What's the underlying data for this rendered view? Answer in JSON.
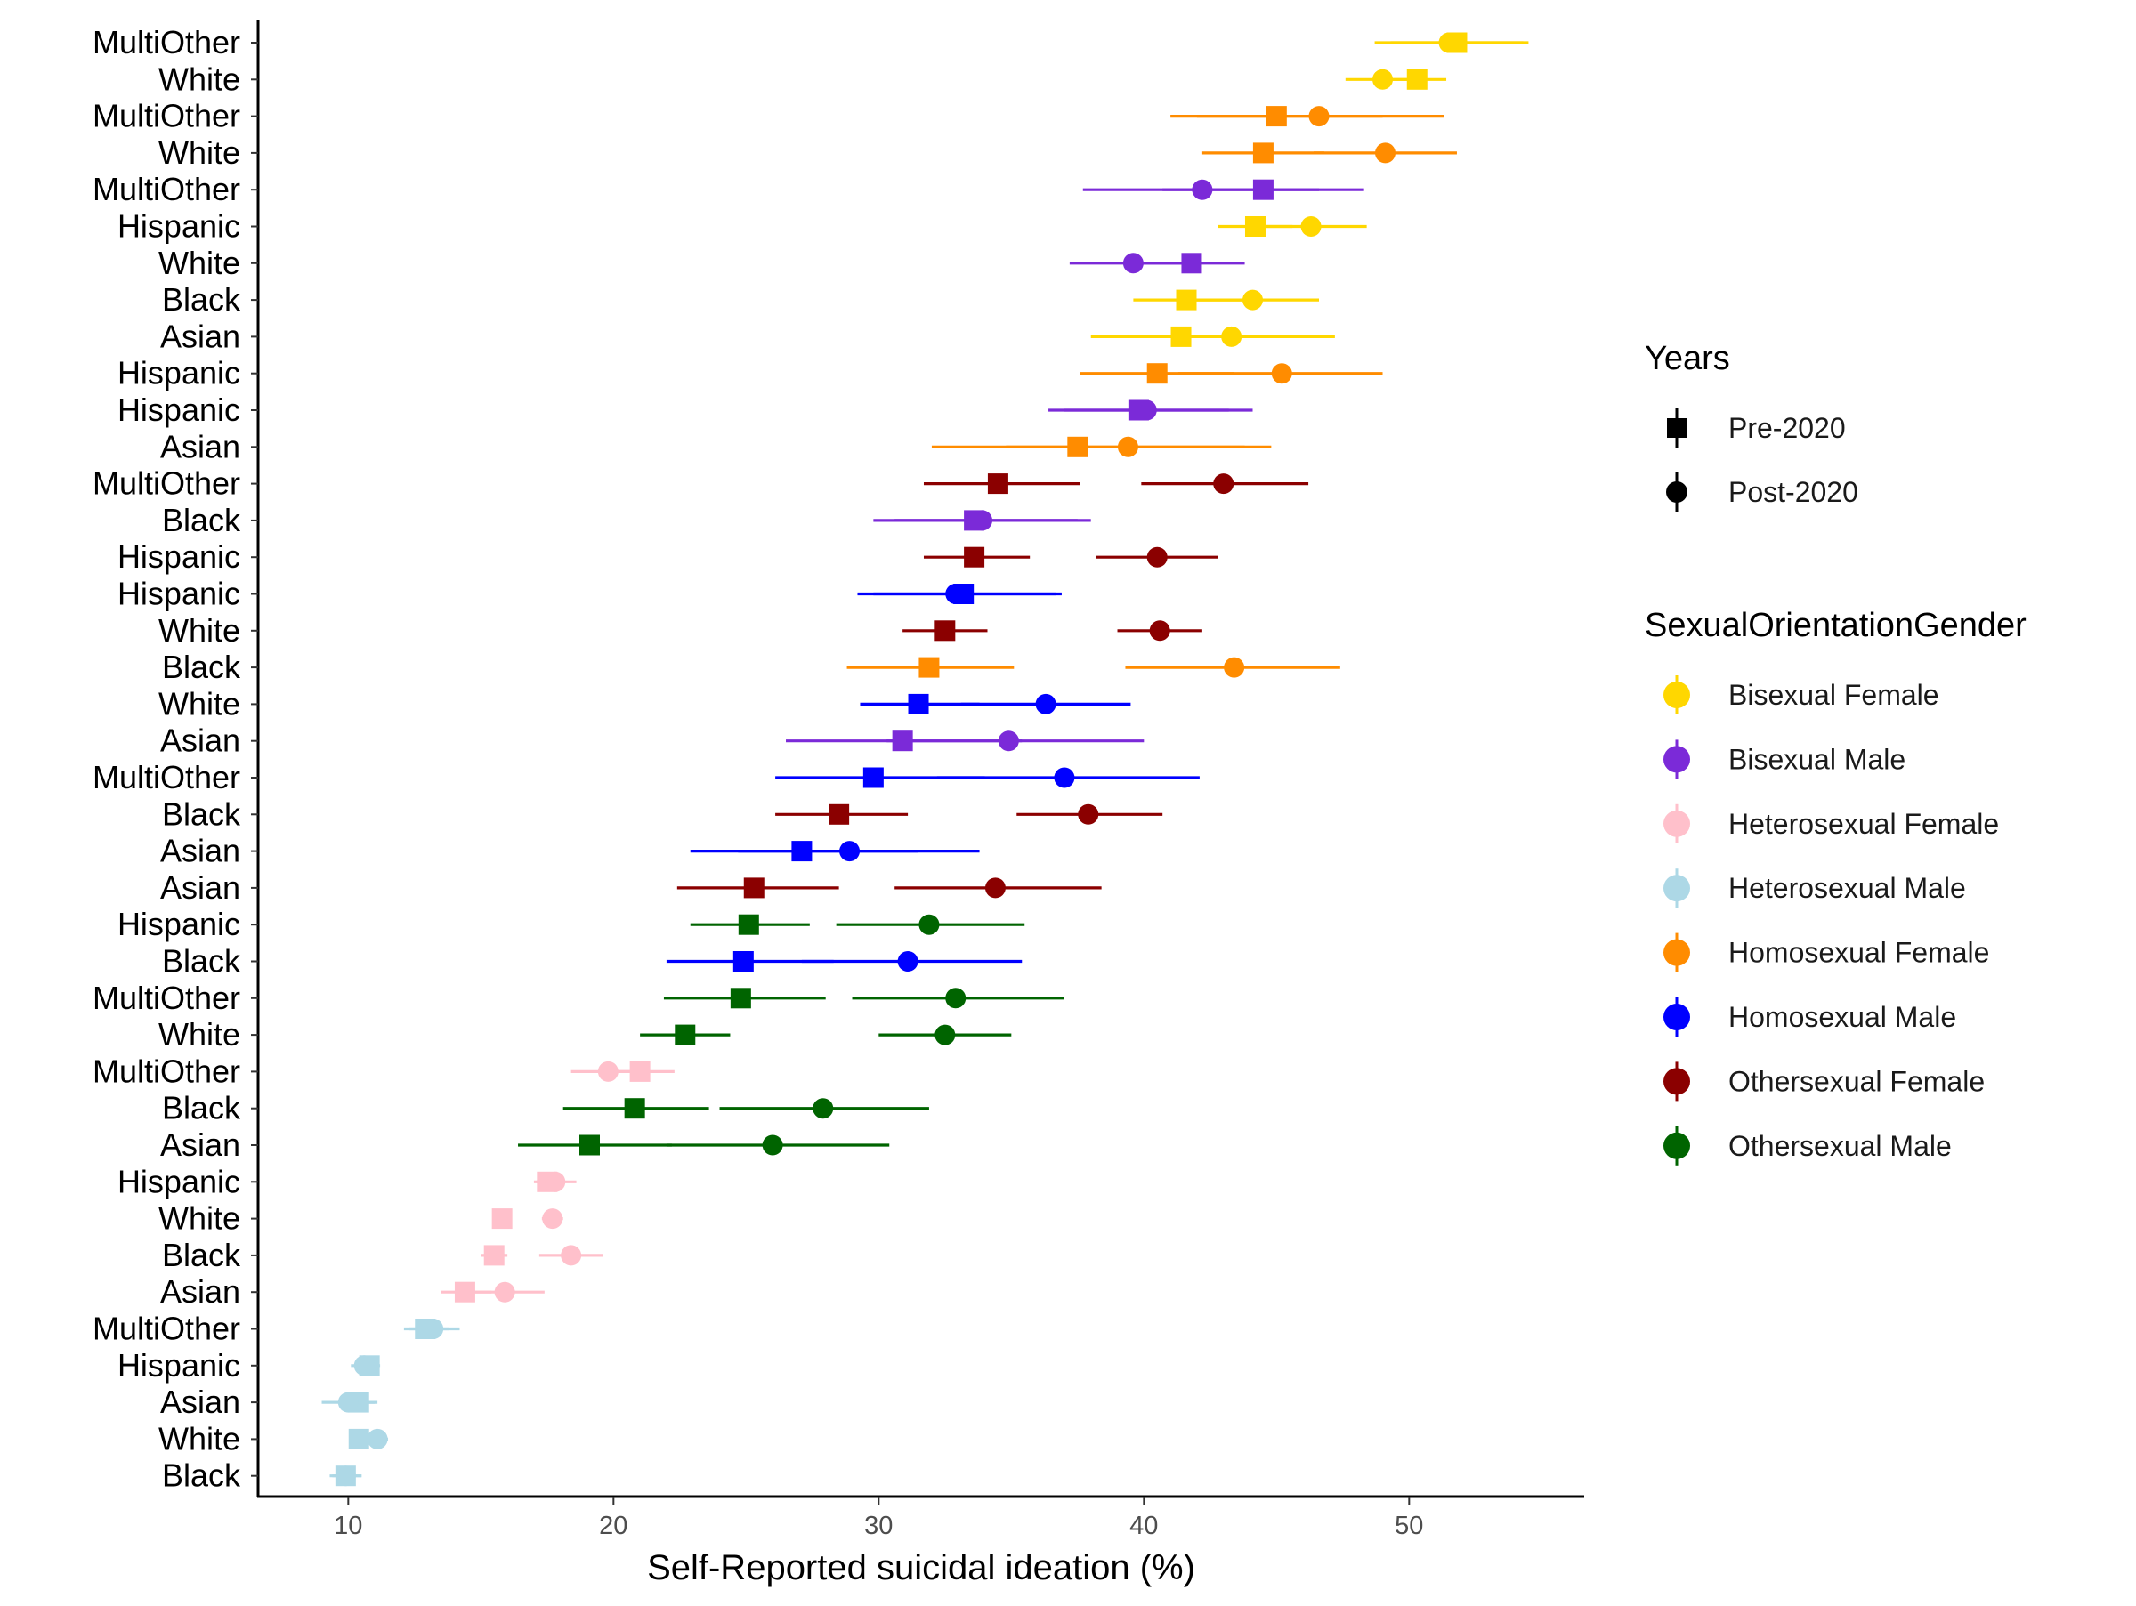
{
  "chart_data": {
    "type": "scatter",
    "subtype": "dot-with-horizontal-error-bars",
    "title": "",
    "xlabel": "Self-Reported suicidal ideation (%)",
    "ylabel": "",
    "xlim": [
      6.6,
      56.6
    ],
    "xticks": [
      10,
      20,
      30,
      40,
      50
    ],
    "grid": false,
    "legend_position": "right",
    "shape_legend": {
      "title": "Years",
      "items": [
        {
          "label": "Pre-2020",
          "shape": "square"
        },
        {
          "label": "Post-2020",
          "shape": "circle"
        }
      ]
    },
    "color_legend": {
      "title": "SexualOrientationGender",
      "items": [
        {
          "label": "Bisexual Female",
          "color": "#FFD700"
        },
        {
          "label": "Bisexual Male",
          "color": "#7B2AD8"
        },
        {
          "label": "Heterosexual Female",
          "color": "#FFC0CB"
        },
        {
          "label": "Heterosexual Male",
          "color": "#ADD8E6"
        },
        {
          "label": "Homosexual Female",
          "color": "#FF8C00"
        },
        {
          "label": "Homosexual Male",
          "color": "#0000FF"
        },
        {
          "label": "Othersexual Female",
          "color": "#8B0000"
        },
        {
          "label": "Othersexual Male",
          "color": "#006400"
        }
      ]
    },
    "rows": [
      {
        "label": "MultiOther",
        "group": "Bisexual Female",
        "pre": [
          51.8,
          49.3,
          54.5
        ],
        "post": [
          51.5,
          48.7,
          54.3
        ]
      },
      {
        "label": "White",
        "group": "Bisexual Female",
        "pre": [
          50.3,
          49.2,
          51.4
        ],
        "post": [
          49.0,
          47.6,
          50.3
        ]
      },
      {
        "label": "MultiOther",
        "group": "Homosexual Female",
        "pre": [
          45.0,
          41.0,
          49.0
        ],
        "post": [
          46.6,
          42.0,
          51.3
        ]
      },
      {
        "label": "White",
        "group": "Homosexual Female",
        "pre": [
          44.5,
          42.2,
          46.8
        ],
        "post": [
          49.1,
          46.4,
          51.8
        ]
      },
      {
        "label": "MultiOther",
        "group": "Bisexual Male",
        "pre": [
          44.5,
          40.7,
          48.3
        ],
        "post": [
          42.2,
          37.7,
          46.6
        ]
      },
      {
        "label": "Hispanic",
        "group": "Bisexual Female",
        "pre": [
          44.2,
          42.8,
          45.6
        ],
        "post": [
          46.3,
          44.3,
          48.4
        ]
      },
      {
        "label": "White",
        "group": "Bisexual Male",
        "pre": [
          41.8,
          39.9,
          43.8
        ],
        "post": [
          39.6,
          37.2,
          42.0
        ]
      },
      {
        "label": "Black",
        "group": "Bisexual Female",
        "pre": [
          41.6,
          39.6,
          43.7
        ],
        "post": [
          44.1,
          41.6,
          46.6
        ]
      },
      {
        "label": "Asian",
        "group": "Bisexual Female",
        "pre": [
          41.4,
          38.0,
          44.7
        ],
        "post": [
          43.3,
          39.4,
          47.2
        ]
      },
      {
        "label": "Hispanic",
        "group": "Homosexual Female",
        "pre": [
          40.5,
          37.6,
          43.4
        ],
        "post": [
          45.2,
          41.3,
          49.0
        ]
      },
      {
        "label": "Hispanic",
        "group": "Bisexual Male",
        "pre": [
          39.8,
          36.4,
          43.2
        ],
        "post": [
          40.1,
          37.0,
          44.1
        ]
      },
      {
        "label": "Asian",
        "group": "Homosexual Female",
        "pre": [
          37.5,
          32.0,
          43.8
        ],
        "post": [
          39.4,
          34.8,
          44.8
        ]
      },
      {
        "label": "MultiOther",
        "group": "Othersexual Female",
        "pre": [
          34.5,
          31.7,
          37.6
        ],
        "post": [
          43.0,
          39.9,
          46.2
        ]
      },
      {
        "label": "Black",
        "group": "Bisexual Male",
        "pre": [
          33.6,
          29.8,
          37.5
        ],
        "post": [
          33.9,
          30.6,
          38.0
        ]
      },
      {
        "label": "Hispanic",
        "group": "Othersexual Female",
        "pre": [
          33.6,
          31.7,
          35.7
        ],
        "post": [
          40.5,
          38.2,
          42.8
        ]
      },
      {
        "label": "Hispanic",
        "group": "Homosexual Male",
        "pre": [
          33.2,
          29.2,
          36.9
        ],
        "post": [
          32.9,
          29.8,
          36.7
        ]
      },
      {
        "label": "White",
        "group": "Othersexual Female",
        "pre": [
          32.5,
          30.9,
          34.1
        ],
        "post": [
          40.6,
          39.0,
          42.2
        ]
      },
      {
        "label": "Black",
        "group": "Homosexual Female",
        "pre": [
          31.9,
          28.8,
          35.1
        ],
        "post": [
          43.4,
          39.3,
          47.4
        ]
      },
      {
        "label": "White",
        "group": "Homosexual Male",
        "pre": [
          31.5,
          29.3,
          33.8
        ],
        "post": [
          36.3,
          33.1,
          39.5
        ]
      },
      {
        "label": "Asian",
        "group": "Bisexual Male",
        "pre": [
          30.9,
          26.5,
          35.4
        ],
        "post": [
          34.9,
          30.3,
          40.0
        ]
      },
      {
        "label": "MultiOther",
        "group": "Homosexual Male",
        "pre": [
          29.8,
          26.1,
          34.0
        ],
        "post": [
          37.0,
          32.2,
          42.1
        ]
      },
      {
        "label": "Black",
        "group": "Othersexual Female",
        "pre": [
          28.5,
          26.1,
          31.1
        ],
        "post": [
          37.9,
          35.2,
          40.7
        ]
      },
      {
        "label": "Asian",
        "group": "Homosexual Male",
        "pre": [
          27.1,
          22.9,
          31.5
        ],
        "post": [
          28.9,
          24.7,
          33.8
        ]
      },
      {
        "label": "Asian",
        "group": "Othersexual Female",
        "pre": [
          25.3,
          22.4,
          28.5
        ],
        "post": [
          34.4,
          30.6,
          38.4
        ]
      },
      {
        "label": "Hispanic",
        "group": "Othersexual Male",
        "pre": [
          25.1,
          22.9,
          27.4
        ],
        "post": [
          31.9,
          28.4,
          35.5
        ]
      },
      {
        "label": "Black",
        "group": "Homosexual Male",
        "pre": [
          24.9,
          22.0,
          28.3
        ],
        "post": [
          31.1,
          27.1,
          35.4
        ]
      },
      {
        "label": "MultiOther",
        "group": "Othersexual Male",
        "pre": [
          24.8,
          21.9,
          28.0
        ],
        "post": [
          32.9,
          29.0,
          37.0
        ]
      },
      {
        "label": "White",
        "group": "Othersexual Male",
        "pre": [
          22.7,
          21.0,
          24.4
        ],
        "post": [
          32.5,
          30.0,
          35.0
        ]
      },
      {
        "label": "MultiOther",
        "group": "Heterosexual Female",
        "pre": [
          21.0,
          19.7,
          22.3
        ],
        "post": [
          19.8,
          18.4,
          21.2
        ]
      },
      {
        "label": "Black",
        "group": "Othersexual Male",
        "pre": [
          20.8,
          18.1,
          23.6
        ],
        "post": [
          27.9,
          24.0,
          31.9
        ]
      },
      {
        "label": "Asian",
        "group": "Othersexual Male",
        "pre": [
          19.1,
          16.4,
          22.2
        ],
        "post": [
          26.0,
          22.0,
          30.4
        ]
      },
      {
        "label": "Hispanic",
        "group": "Heterosexual Female",
        "pre": [
          17.5,
          17.0,
          18.0
        ],
        "post": [
          17.8,
          17.1,
          18.6
        ]
      },
      {
        "label": "White",
        "group": "Heterosexual Female",
        "pre": [
          15.8,
          15.5,
          16.1
        ],
        "post": [
          17.7,
          17.3,
          18.1
        ]
      },
      {
        "label": "Black",
        "group": "Heterosexual Female",
        "pre": [
          15.5,
          15.0,
          16.0
        ],
        "post": [
          18.4,
          17.2,
          19.6
        ]
      },
      {
        "label": "Asian",
        "group": "Heterosexual Female",
        "pre": [
          14.4,
          13.5,
          15.4
        ],
        "post": [
          15.9,
          14.4,
          17.4
        ]
      },
      {
        "label": "MultiOther",
        "group": "Heterosexual Male",
        "pre": [
          12.9,
          12.1,
          13.8
        ],
        "post": [
          13.2,
          12.3,
          14.2
        ]
      },
      {
        "label": "Hispanic",
        "group": "Heterosexual Male",
        "pre": [
          10.8,
          10.4,
          11.2
        ],
        "post": [
          10.6,
          10.1,
          11.1
        ]
      },
      {
        "label": "Asian",
        "group": "Heterosexual Male",
        "pre": [
          10.4,
          9.7,
          11.1
        ],
        "post": [
          10.0,
          9.0,
          11.0
        ]
      },
      {
        "label": "White",
        "group": "Heterosexual Male",
        "pre": [
          10.4,
          10.1,
          10.7
        ],
        "post": [
          11.1,
          10.7,
          11.5
        ]
      },
      {
        "label": "Black",
        "group": "Heterosexual Male",
        "pre": [
          9.9,
          9.4,
          10.5
        ],
        "post": [
          9.9,
          9.3,
          10.5
        ]
      }
    ]
  }
}
